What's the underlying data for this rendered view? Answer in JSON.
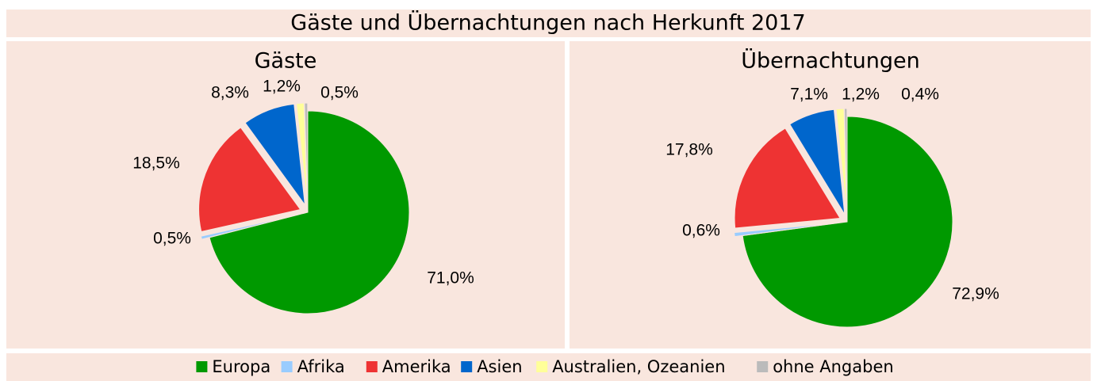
{
  "title": "Gäste und Übernachtungen nach Herkunft 2017",
  "legend": {
    "labels": [
      "Europa",
      "Afrika",
      "Amerika",
      "Asien",
      "Australien, Ozeanien",
      "ohne Angaben"
    ],
    "colors": [
      "#009900",
      "#99ccff",
      "#ee3333",
      "#0066cc",
      "#ffff99",
      "#bbbbbb"
    ]
  },
  "chart_data": [
    {
      "type": "pie",
      "title": "Gäste",
      "values": [
        71.0,
        0.5,
        18.5,
        8.3,
        1.2,
        0.5
      ],
      "value_labels": [
        "71,0%",
        "0,5%",
        "18,5%",
        "8,3%",
        "1,2%",
        "0,5%"
      ]
    },
    {
      "type": "pie",
      "title": "Übernachtungen",
      "values": [
        72.9,
        0.6,
        17.8,
        7.1,
        1.2,
        0.4
      ],
      "value_labels": [
        "72,9%",
        "0,6%",
        "17,8%",
        "7,1%",
        "1,2%",
        "0,4%"
      ]
    }
  ]
}
